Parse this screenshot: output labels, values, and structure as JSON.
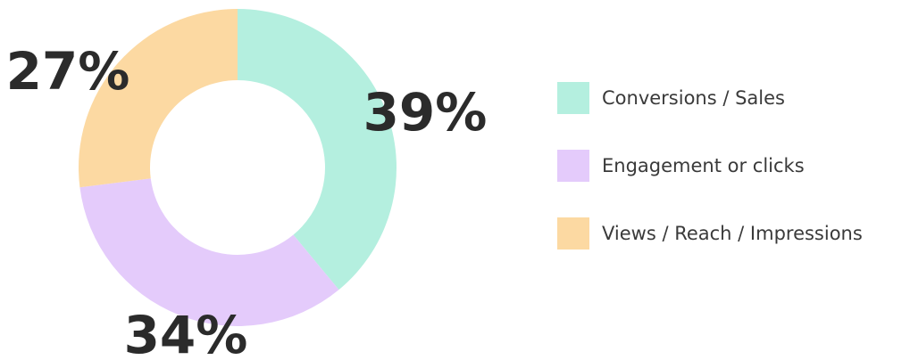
{
  "chart_data": {
    "type": "pie",
    "variant": "donut",
    "title": "",
    "categories": [
      "Conversions / Sales",
      "Engagement or clicks",
      "Views / Reach / Impressions"
    ],
    "values": [
      39,
      34,
      27
    ],
    "value_labels": [
      "39%",
      "34%",
      "27%"
    ],
    "colors": [
      "#b4efdf",
      "#e4cbfb",
      "#fcd9a2"
    ],
    "legend_placement": "right"
  }
}
